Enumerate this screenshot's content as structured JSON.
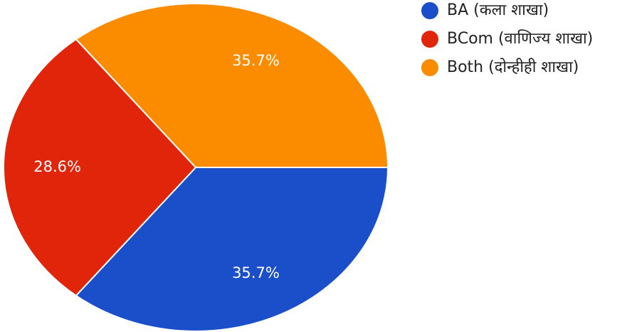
{
  "chart_data": {
    "type": "pie",
    "series": [
      {
        "name": "BA (कला शाखा)",
        "color": "#1a4fc9",
        "values": [
          35.7
        ],
        "value_labels": [
          "35.7%"
        ]
      },
      {
        "name": "BCom (वाणिज्य शाखा)",
        "color": "#e0250b",
        "values": [
          28.6
        ],
        "value_labels": [
          "28.6%"
        ]
      },
      {
        "name": "Both (दोन्हीही शाखा)",
        "color": "#fb8c00",
        "values": [
          35.7
        ],
        "value_labels": [
          "35.7%"
        ]
      }
    ],
    "legend": "top-right"
  }
}
